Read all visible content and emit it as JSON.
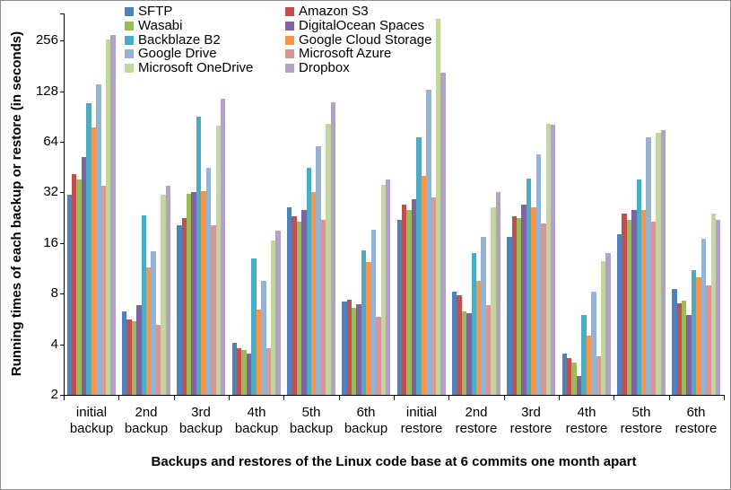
{
  "figure": {
    "background": "#ffffff",
    "border_color": "#8c8c8c",
    "axis_color": "#000000",
    "text_color": "#000000"
  },
  "chart_data": {
    "type": "bar",
    "title": "",
    "xlabel": "Backups and restores of the Linux code base at 6 commits one month apart",
    "ylabel": "Running times of each backup or restore (in seconds)",
    "y_scale": "log2",
    "ylim": [
      2,
      372
    ],
    "y_ticks": [
      2,
      4,
      8,
      16,
      32,
      64,
      128,
      256
    ],
    "grid": false,
    "legend_position": "top-left-two-columns",
    "categories": [
      "initial backup",
      "2nd backup",
      "3rd backup",
      "4th backup",
      "5th backup",
      "6th backup",
      "initial restore",
      "2nd restore",
      "3rd restore",
      "4th restore",
      "5th restore",
      "6th restore"
    ],
    "series": [
      {
        "name": "SFTP",
        "color": "#4F81BD",
        "values": [
          31,
          6.3,
          20.5,
          4.1,
          26,
          7.2,
          22,
          8.2,
          17.5,
          3.5,
          18,
          8.5
        ]
      },
      {
        "name": "Amazon S3",
        "color": "#C0504D",
        "values": [
          41,
          5.6,
          22.5,
          3.8,
          23,
          7.4,
          27,
          7.8,
          23,
          3.3,
          24,
          7
        ]
      },
      {
        "name": "Wasabi",
        "color": "#9BBB59",
        "values": [
          38,
          5.5,
          31.5,
          3.7,
          21.5,
          6.6,
          25,
          6.3,
          22.5,
          3.1,
          22,
          7.3
        ]
      },
      {
        "name": "DigitalOcean Spaces",
        "color": "#8064A2",
        "values": [
          52,
          6.8,
          32,
          3.5,
          25,
          6.9,
          29,
          6.1,
          27,
          2.6,
          25,
          6
        ]
      },
      {
        "name": "Backblaze B2",
        "color": "#4BACC6",
        "values": [
          108,
          23.5,
          90,
          13,
          45,
          14.5,
          68,
          14,
          38.5,
          6,
          38,
          11
        ]
      },
      {
        "name": "Google Cloud Storage",
        "color": "#F79646",
        "values": [
          78,
          11.5,
          32.5,
          6.4,
          32,
          12.3,
          40,
          9.5,
          26,
          4.5,
          25,
          10
        ]
      },
      {
        "name": "Google Drive",
        "color": "#95B3D7",
        "values": [
          140,
          14.3,
          45,
          9.5,
          60,
          19.3,
          130,
          17.5,
          54,
          8.2,
          68,
          17
        ]
      },
      {
        "name": "Microsoft Azure",
        "color": "#D99694",
        "values": [
          35,
          5.2,
          20.5,
          3.8,
          22,
          5.8,
          30,
          6.8,
          21,
          3.4,
          21.5,
          9
        ]
      },
      {
        "name": "Microsoft OneDrive",
        "color": "#C3D69B",
        "values": [
          260,
          31,
          80,
          16.5,
          82,
          35.5,
          345,
          26,
          82,
          12.5,
          72,
          24
        ]
      },
      {
        "name": "Dropbox",
        "color": "#B3A2C7",
        "values": [
          275,
          35,
          115,
          19,
          110,
          38,
          165,
          32,
          81,
          14,
          75,
          22
        ]
      }
    ]
  }
}
